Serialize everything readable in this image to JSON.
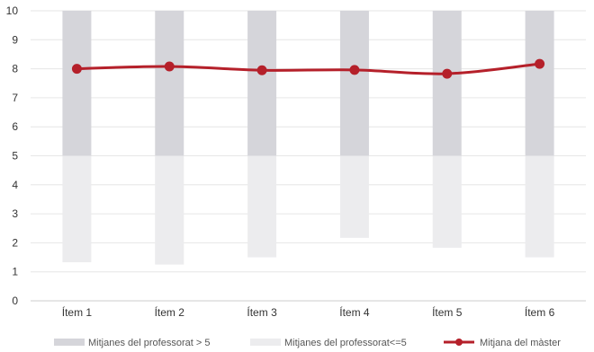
{
  "chart_data": {
    "type": "bar",
    "categories": [
      "Ítem 1",
      "Ítem 2",
      "Ítem 3",
      "Ítem 4",
      "Ítem 5",
      "Ítem 6"
    ],
    "ylim": [
      0,
      10
    ],
    "yticks": [
      0,
      1,
      2,
      3,
      4,
      5,
      6,
      7,
      8,
      9,
      10
    ],
    "grid": true,
    "legend_position": "bottom",
    "series": [
      {
        "name": "Mitjanes del professorat > 5",
        "kind": "range-bar",
        "color": "#d5d5da",
        "ranges": [
          [
            5,
            10
          ],
          [
            5,
            10
          ],
          [
            5,
            10
          ],
          [
            5,
            10
          ],
          [
            5,
            10
          ],
          [
            5,
            10
          ]
        ]
      },
      {
        "name": "Mitjanes del professorat<=5",
        "kind": "range-bar",
        "color": "#ececee",
        "ranges": [
          [
            1.33,
            5
          ],
          [
            1.25,
            5
          ],
          [
            1.5,
            5
          ],
          [
            2.17,
            5
          ],
          [
            1.83,
            5
          ],
          [
            1.5,
            5
          ]
        ]
      },
      {
        "name": "Mitjana del màster",
        "kind": "line",
        "color": "#b5202a",
        "values": [
          8.0,
          8.08,
          7.95,
          7.96,
          7.83,
          8.17
        ]
      }
    ]
  }
}
